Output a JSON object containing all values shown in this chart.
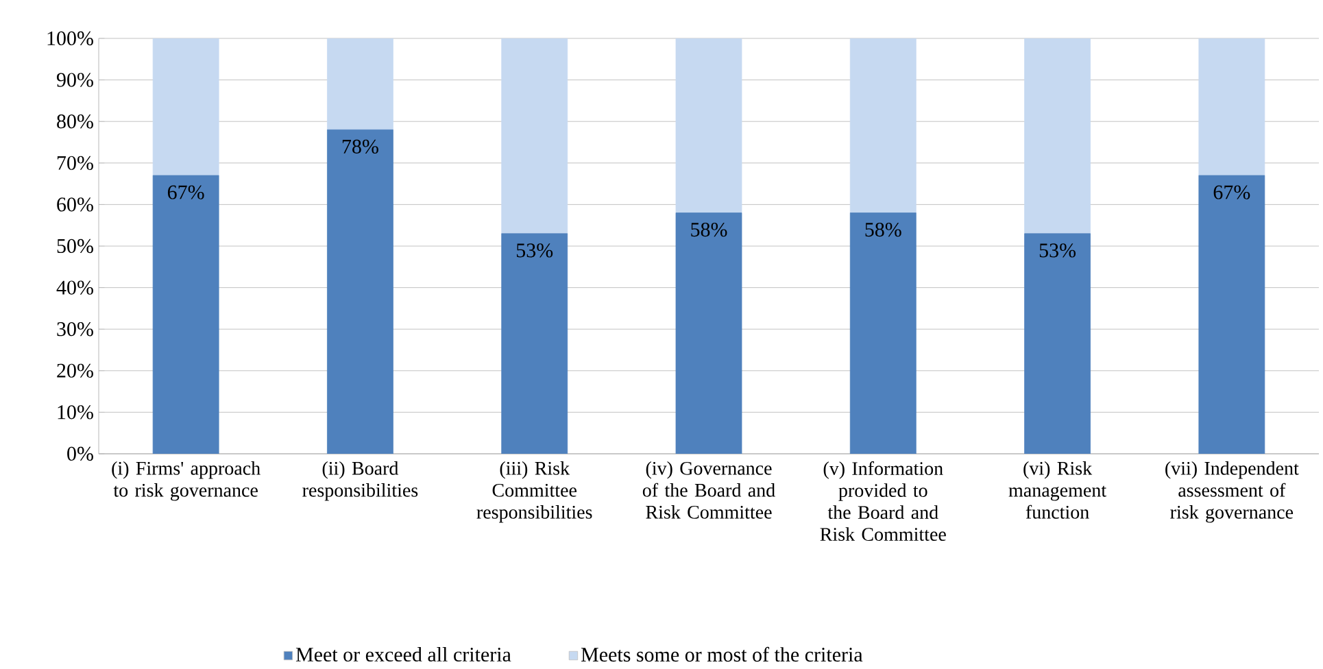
{
  "chart_data": {
    "type": "bar",
    "stacked": true,
    "categories": [
      "(i) Firms' approach to risk governance",
      "(ii) Board responsibilities",
      "(iii) Risk Committee responsibilities",
      "(iv) Governance of the Board and Risk Committee",
      "(v) Information provided to the Board and Risk Committee",
      "(vi) Risk management function",
      "(vii) Independent assessment of risk governance"
    ],
    "series": [
      {
        "name": "Meet or exceed all criteria",
        "color": "#4f81bd",
        "values": [
          67,
          78,
          53,
          58,
          58,
          53,
          67
        ],
        "value_labels": [
          "67%",
          "78%",
          "53%",
          "58%",
          "58%",
          "53%",
          "67%"
        ]
      },
      {
        "name": "Meets some or most of the criteria",
        "color": "#c6d9f1",
        "values": [
          33,
          22,
          47,
          42,
          42,
          47,
          33
        ]
      }
    ],
    "ylim": [
      0,
      100
    ],
    "yticks": [
      {
        "value": 0,
        "label": "0%"
      },
      {
        "value": 10,
        "label": "10%"
      },
      {
        "value": 20,
        "label": "20%"
      },
      {
        "value": 30,
        "label": "30%"
      },
      {
        "value": 40,
        "label": "40%"
      },
      {
        "value": 50,
        "label": "50%"
      },
      {
        "value": 60,
        "label": "60%"
      },
      {
        "value": 70,
        "label": "70%"
      },
      {
        "value": 80,
        "label": "80%"
      },
      {
        "value": 90,
        "label": "90%"
      },
      {
        "value": 100,
        "label": "100%"
      }
    ],
    "grid": "y",
    "legend": "bottom"
  }
}
